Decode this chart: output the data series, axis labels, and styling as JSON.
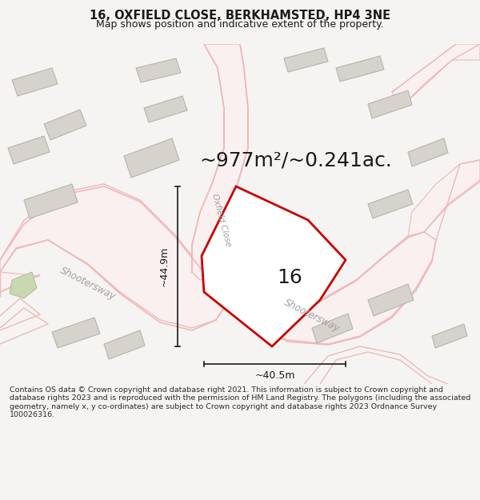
{
  "title_line1": "16, OXFIELD CLOSE, BERKHAMSTED, HP4 3NE",
  "title_line2": "Map shows position and indicative extent of the property.",
  "area_text": "~977m²/~0.241ac.",
  "property_number": "16",
  "dim_width": "~40.5m",
  "dim_height": "~44.9m",
  "footer_text": "Contains OS data © Crown copyright and database right 2021. This information is subject to Crown copyright and database rights 2023 and is reproduced with the permission of HM Land Registry. The polygons (including the associated geometry, namely x, y co-ordinates) are subject to Crown copyright and database rights 2023 Ordnance Survey 100026316.",
  "bg_color": "#f5f4f2",
  "map_bg": "#f5f4f2",
  "road_line_color": "#f0b8b8",
  "road_fill_color": "#faf0f0",
  "building_color": "#d6d3cc",
  "building_border": "#b8b5ae",
  "property_fill": "#ffffff",
  "property_border": "#cc0000",
  "text_color": "#1a1a1a",
  "road_label_color": "#a0a0a0",
  "footer_color": "#2a2a2a",
  "green_color": "#c8d8b0",
  "green_border": "#a8b890",
  "title_fontsize": 10.5,
  "subtitle_fontsize": 9.0,
  "area_fontsize": 18,
  "number_fontsize": 18,
  "road_label_fontsize": 8.5,
  "dim_fontsize": 9,
  "footer_fontsize": 6.8
}
